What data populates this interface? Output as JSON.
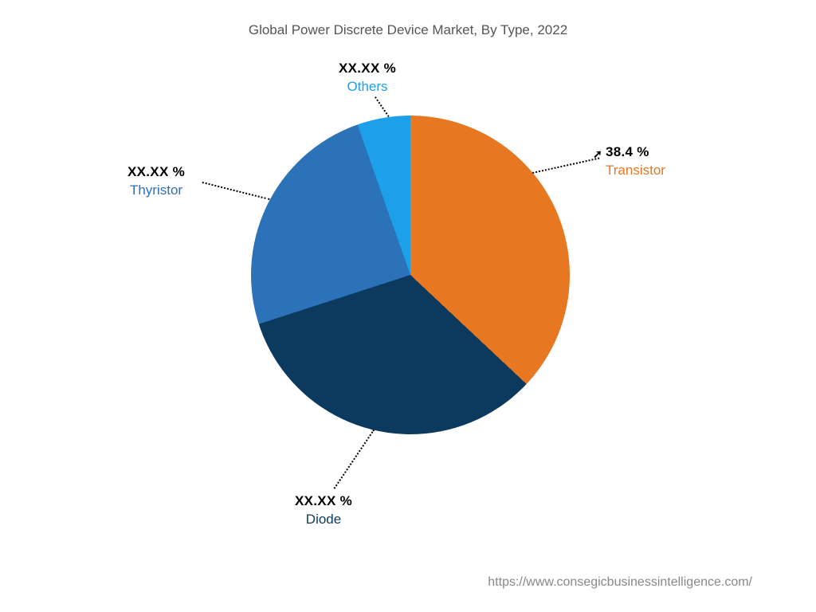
{
  "chart": {
    "type": "pie",
    "title": "Global Power Discrete Device Market, By Type, 2022",
    "background_color": "#ffffff",
    "title_color": "#555555",
    "title_fontsize": 17,
    "slices": [
      {
        "label": "Transistor",
        "percent_text": "38.4 %",
        "value": 38.4,
        "color": "#e87722",
        "label_color": "#e87722"
      },
      {
        "label": "Diode",
        "percent_text": "XX.XX %",
        "value": 33.0,
        "color": "#0c3a5f",
        "label_color": "#0c3a5f"
      },
      {
        "label": "Thyristor",
        "percent_text": "XX.XX %",
        "value": 24.6,
        "color": "#2b72b8",
        "label_color": "#2b72b8"
      },
      {
        "label": "Others",
        "percent_text": "XX.XX %",
        "value": 4.0,
        "color": "#1ca0ea",
        "label_color": "#1ca0ea"
      }
    ],
    "start_angle_deg": -5,
    "leader_color": "#000000",
    "label_pct_color": "#000000",
    "label_fontsize": 17
  },
  "footer": {
    "text": "https://www.consegicbusinessintelligence.com/",
    "color": "#888888",
    "fontsize": 16
  }
}
